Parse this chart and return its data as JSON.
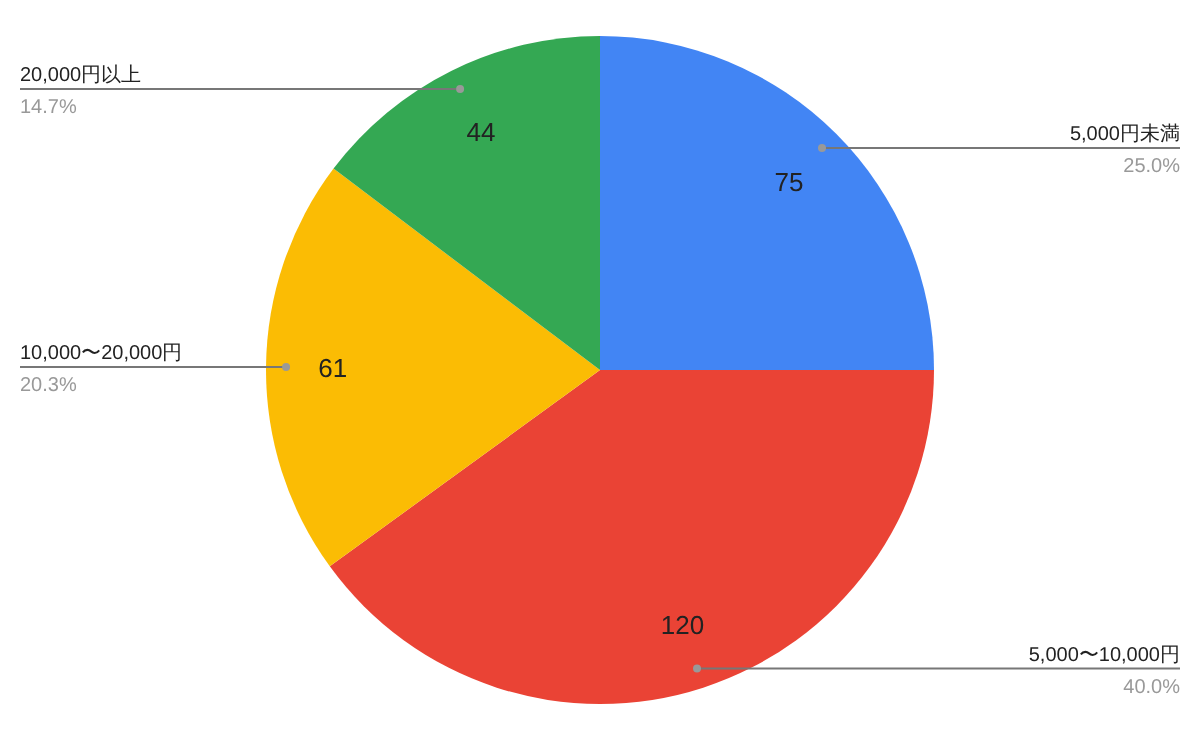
{
  "chart_data": {
    "type": "pie",
    "categories": [
      "5,000円未満",
      "5,000〜10,000円",
      "10,000〜20,000円",
      "20,000円以上"
    ],
    "values": [
      25.0,
      40.0,
      20.3,
      14.7
    ],
    "colors": [
      "#4285f4",
      "#ea4335",
      "#fbbc04",
      "#34a853"
    ],
    "value_labels": [
      "25.0%",
      "40.0%",
      "20.3%",
      "14.7%"
    ],
    "annotations": [
      {
        "text": "75",
        "x": "5,000円未満"
      },
      {
        "text": "120",
        "x": "5,000〜10,000円"
      },
      {
        "text": "61",
        "x": "10,000〜20,000円"
      },
      {
        "text": "44",
        "x": "20,000円以上"
      }
    ]
  }
}
